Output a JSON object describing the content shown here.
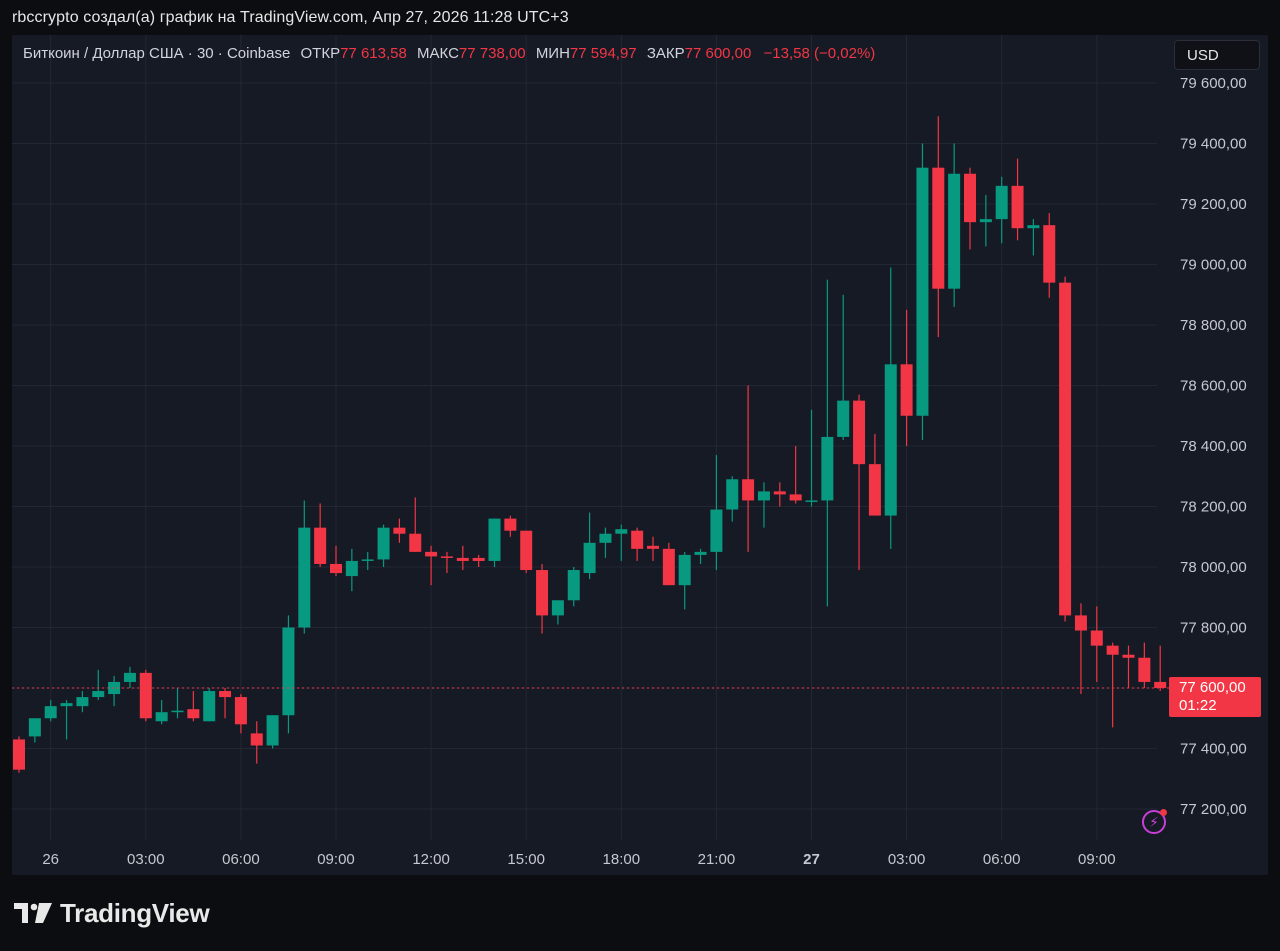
{
  "caption": "rbccrypto создал(а) график на TradingView.com, Апр 27, 2026 11:28 UTC+3",
  "legend": {
    "symbol": "Биткоин / Доллар США · 30 · Coinbase",
    "open_label": "ОТКР",
    "open": "77 613,58",
    "high_label": "МАКС",
    "high": "77 738,00",
    "low_label": "МИН",
    "low": "77 594,97",
    "close_label": "ЗАКР",
    "close": "77 600,00",
    "change": "−13,58 (−0,02%)"
  },
  "currency_button": "USD",
  "last_price": {
    "price": "77 600,00",
    "countdown": "01:22"
  },
  "brand": "TradingView",
  "colors": {
    "up": "#089981",
    "down": "#f23645",
    "background": "#161a25",
    "grid": "#232733",
    "alert": "#c73fd7"
  },
  "icons": [
    "tradingview-logo-icon",
    "lightning-alert-icon"
  ],
  "chart_data": {
    "type": "candlestick",
    "title": "Биткоин / Доллар США · 30 · Coinbase",
    "interval_minutes": 30,
    "currency": "USD",
    "y_range": [
      77100,
      79750
    ],
    "y_ticks": [
      77200,
      77400,
      77600,
      77800,
      78000,
      78200,
      78400,
      78600,
      78800,
      79000,
      79200,
      79400,
      79600
    ],
    "y_tick_labels": [
      "77 200,00",
      "77 400,00",
      "77 600,00",
      "77 800,00",
      "78 000,00",
      "78 200,00",
      "78 400,00",
      "78 600,00",
      "78 800,00",
      "79 000,00",
      "79 200,00",
      "79 400,00",
      "79 600,00"
    ],
    "x_tick_labels": [
      {
        "label": "26",
        "bar": 2,
        "bold": false
      },
      {
        "label": "03:00",
        "bar": 8,
        "bold": false
      },
      {
        "label": "06:00",
        "bar": 14,
        "bold": false
      },
      {
        "label": "09:00",
        "bar": 20,
        "bold": false
      },
      {
        "label": "12:00",
        "bar": 26,
        "bold": false
      },
      {
        "label": "15:00",
        "bar": 32,
        "bold": false
      },
      {
        "label": "18:00",
        "bar": 38,
        "bold": false
      },
      {
        "label": "21:00",
        "bar": 44,
        "bold": false
      },
      {
        "label": "27",
        "bar": 50,
        "bold": true
      },
      {
        "label": "03:00",
        "bar": 56,
        "bold": false
      },
      {
        "label": "06:00",
        "bar": 62,
        "bold": false
      },
      {
        "label": "09:00",
        "bar": 68,
        "bold": false
      }
    ],
    "last_price": 77600,
    "ohlc": [
      [
        77430,
        77440,
        77320,
        77330
      ],
      [
        77440,
        77500,
        77420,
        77500
      ],
      [
        77500,
        77560,
        77490,
        77540
      ],
      [
        77540,
        77560,
        77430,
        77550
      ],
      [
        77540,
        77590,
        77520,
        77570
      ],
      [
        77570,
        77660,
        77560,
        77590
      ],
      [
        77580,
        77640,
        77540,
        77620
      ],
      [
        77620,
        77670,
        77600,
        77650
      ],
      [
        77650,
        77660,
        77490,
        77500
      ],
      [
        77490,
        77560,
        77480,
        77520
      ],
      [
        77520,
        77600,
        77500,
        77525
      ],
      [
        77530,
        77590,
        77490,
        77500
      ],
      [
        77490,
        77600,
        77490,
        77590
      ],
      [
        77590,
        77600,
        77500,
        77570
      ],
      [
        77570,
        77580,
        77450,
        77480
      ],
      [
        77450,
        77490,
        77350,
        77410
      ],
      [
        77410,
        77510,
        77400,
        77510
      ],
      [
        77510,
        77840,
        77450,
        77800
      ],
      [
        77800,
        78220,
        77780,
        78130
      ],
      [
        78130,
        78210,
        78000,
        78010
      ],
      [
        78010,
        78070,
        77970,
        77980
      ],
      [
        77970,
        78060,
        77920,
        78020
      ],
      [
        78020,
        78050,
        77990,
        78025
      ],
      [
        78025,
        78140,
        78000,
        78130
      ],
      [
        78130,
        78160,
        78080,
        78110
      ],
      [
        78110,
        78230,
        78050,
        78050
      ],
      [
        78050,
        78070,
        77940,
        78035
      ],
      [
        78035,
        78050,
        77980,
        78030
      ],
      [
        78030,
        78070,
        77990,
        78020
      ],
      [
        78030,
        78040,
        78000,
        78020
      ],
      [
        78020,
        78160,
        78000,
        78160
      ],
      [
        78160,
        78170,
        78100,
        78120
      ],
      [
        78120,
        78120,
        77980,
        77990
      ],
      [
        77990,
        78010,
        77780,
        77840
      ],
      [
        77840,
        77890,
        77810,
        77890
      ],
      [
        77890,
        78000,
        77870,
        77990
      ],
      [
        77980,
        78180,
        77960,
        78080
      ],
      [
        78080,
        78130,
        78030,
        78110
      ],
      [
        78110,
        78140,
        78020,
        78125
      ],
      [
        78120,
        78130,
        78020,
        78060
      ],
      [
        78070,
        78100,
        78020,
        78060
      ],
      [
        78060,
        78080,
        77940,
        77940
      ],
      [
        77940,
        78050,
        77860,
        78040
      ],
      [
        78040,
        78060,
        78010,
        78050
      ],
      [
        78050,
        78370,
        77990,
        78190
      ],
      [
        78190,
        78300,
        78150,
        78290
      ],
      [
        78290,
        78600,
        78050,
        78220
      ],
      [
        78220,
        78280,
        78130,
        78250
      ],
      [
        78250,
        78280,
        78200,
        78240
      ],
      [
        78240,
        78400,
        78210,
        78220
      ],
      [
        78220,
        78520,
        78200,
        78220
      ],
      [
        78220,
        78950,
        77870,
        78430
      ],
      [
        78430,
        78900,
        78420,
        78550
      ],
      [
        78550,
        78570,
        77990,
        78340
      ],
      [
        78340,
        78440,
        78170,
        78170
      ],
      [
        78170,
        78990,
        78060,
        78670
      ],
      [
        78670,
        78850,
        78400,
        78500
      ],
      [
        78500,
        79400,
        78420,
        79320
      ],
      [
        79320,
        79490,
        78760,
        78920
      ],
      [
        78920,
        79400,
        78860,
        79300
      ],
      [
        79300,
        79320,
        79050,
        79140
      ],
      [
        79140,
        79230,
        79060,
        79150
      ],
      [
        79150,
        79290,
        79070,
        79260
      ],
      [
        79260,
        79350,
        79080,
        79120
      ],
      [
        79120,
        79150,
        79030,
        79130
      ],
      [
        79130,
        79170,
        78890,
        78940
      ],
      [
        78940,
        78960,
        77820,
        77840
      ],
      [
        77840,
        77880,
        77580,
        77790
      ],
      [
        77790,
        77870,
        77620,
        77740
      ],
      [
        77740,
        77750,
        77470,
        77710
      ],
      [
        77710,
        77740,
        77600,
        77700
      ],
      [
        77700,
        77750,
        77600,
        77620
      ],
      [
        77620,
        77740,
        77590,
        77600
      ]
    ]
  }
}
